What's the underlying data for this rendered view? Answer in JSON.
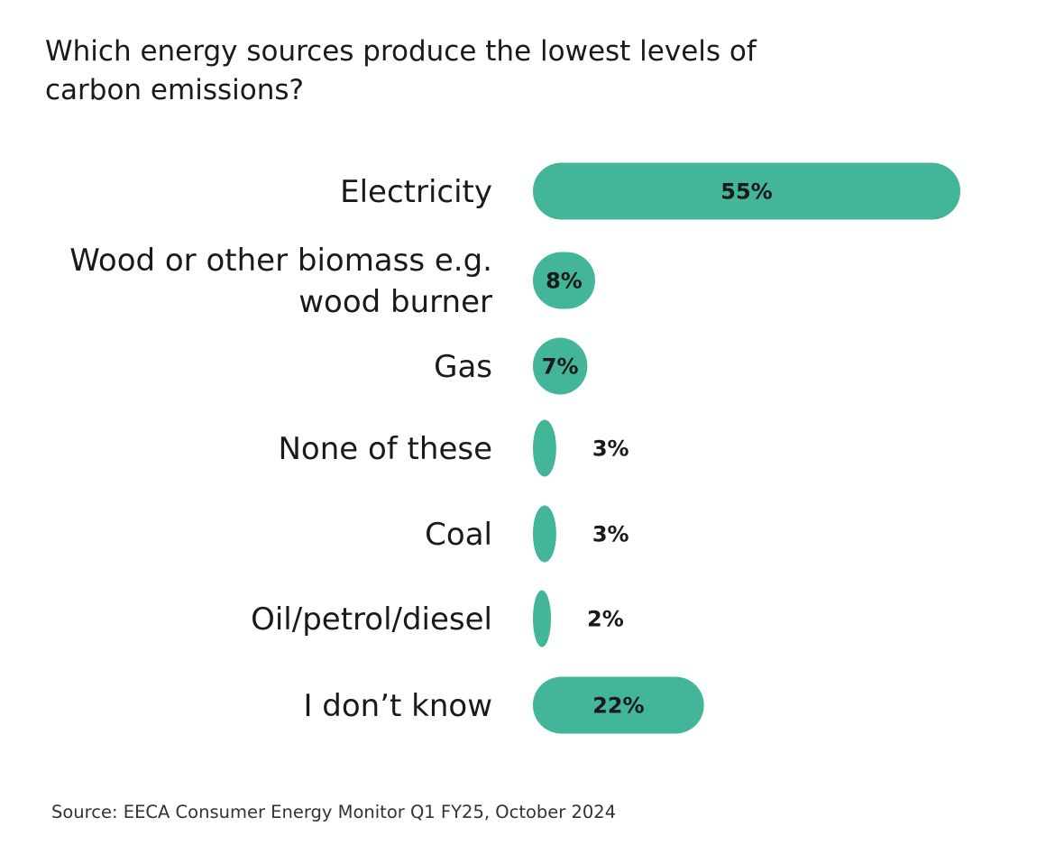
{
  "chart_data": {
    "type": "bar",
    "orientation": "horizontal",
    "title": "Which energy sources produce the lowest levels of carbon emissions?",
    "title_lines": [
      "Which energy sources produce the lowest levels of",
      "carbon emissions?"
    ],
    "categories": [
      "Electricity",
      "Wood or other biomass e.g. wood burner",
      "Gas",
      "None of these",
      "Coal",
      "Oil/petrol/diesel",
      "I don’t know"
    ],
    "category_lines": [
      [
        "Electricity"
      ],
      [
        "Wood or other biomass e.g.",
        "wood burner"
      ],
      [
        "Gas"
      ],
      [
        "None of these"
      ],
      [
        "Coal"
      ],
      [
        "Oil/petrol/diesel"
      ],
      [
        "I don’t know"
      ]
    ],
    "values": [
      55,
      8,
      7,
      3,
      3,
      2,
      22
    ],
    "value_labels": [
      "55%",
      "8%",
      "7%",
      "3%",
      "3%",
      "2%",
      "22%"
    ],
    "unit": "%",
    "bar_color": "#43b699",
    "xlim": [
      0,
      55
    ],
    "grid": false,
    "legend": "none"
  },
  "source": "Source: EECA Consumer Energy Monitor Q1 FY25, October 2024"
}
